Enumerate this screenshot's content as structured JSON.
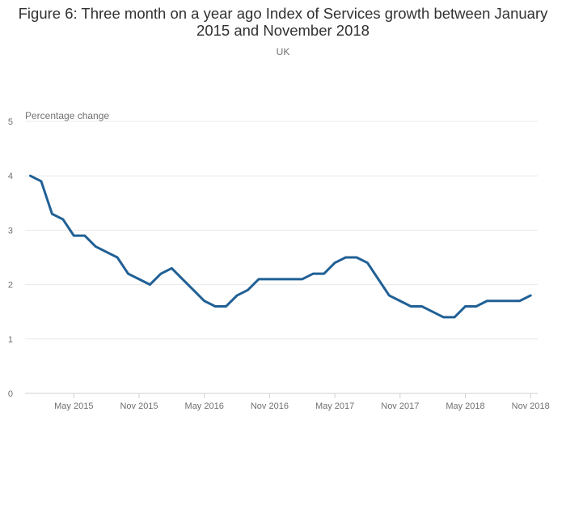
{
  "chart_data": {
    "type": "line",
    "title": "Figure 6: Three month on a year ago Index of Services growth between January 2015 and November 2018",
    "subtitle": "UK",
    "ylabel": "Percentage change",
    "xlabel": "",
    "ylim": [
      0,
      5
    ],
    "yticks": [
      0,
      1,
      2,
      3,
      4,
      5
    ],
    "grid": true,
    "x_tick_labels": [
      "May 2015",
      "Nov 2015",
      "May 2016",
      "Nov 2016",
      "May 2017",
      "Nov 2017",
      "May 2018",
      "Nov 2018"
    ],
    "x_tick_indices": [
      4,
      10,
      16,
      22,
      28,
      34,
      40,
      46
    ],
    "x": [
      "Jan 2015",
      "Feb 2015",
      "Mar 2015",
      "Apr 2015",
      "May 2015",
      "Jun 2015",
      "Jul 2015",
      "Aug 2015",
      "Sep 2015",
      "Oct 2015",
      "Nov 2015",
      "Dec 2015",
      "Jan 2016",
      "Feb 2016",
      "Mar 2016",
      "Apr 2016",
      "May 2016",
      "Jun 2016",
      "Jul 2016",
      "Aug 2016",
      "Sep 2016",
      "Oct 2016",
      "Nov 2016",
      "Dec 2016",
      "Jan 2017",
      "Feb 2017",
      "Mar 2017",
      "Apr 2017",
      "May 2017",
      "Jun 2017",
      "Jul 2017",
      "Aug 2017",
      "Sep 2017",
      "Oct 2017",
      "Nov 2017",
      "Dec 2017",
      "Jan 2018",
      "Feb 2018",
      "Mar 2018",
      "Apr 2018",
      "May 2018",
      "Jun 2018",
      "Jul 2018",
      "Aug 2018",
      "Sep 2018",
      "Oct 2018",
      "Nov 2018"
    ],
    "series": [
      {
        "color": "#206095",
        "values": [
          4.0,
          3.9,
          3.3,
          3.2,
          2.9,
          2.9,
          2.7,
          2.6,
          2.5,
          2.2,
          2.1,
          2.0,
          2.2,
          2.3,
          2.1,
          1.9,
          1.7,
          1.6,
          1.6,
          1.8,
          1.9,
          2.1,
          2.1,
          2.1,
          2.1,
          2.1,
          2.2,
          2.2,
          2.4,
          2.5,
          2.5,
          2.4,
          2.1,
          1.8,
          1.7,
          1.6,
          1.6,
          1.5,
          1.4,
          1.4,
          1.6,
          1.6,
          1.7,
          1.7,
          1.7,
          1.7,
          1.8
        ]
      }
    ]
  }
}
